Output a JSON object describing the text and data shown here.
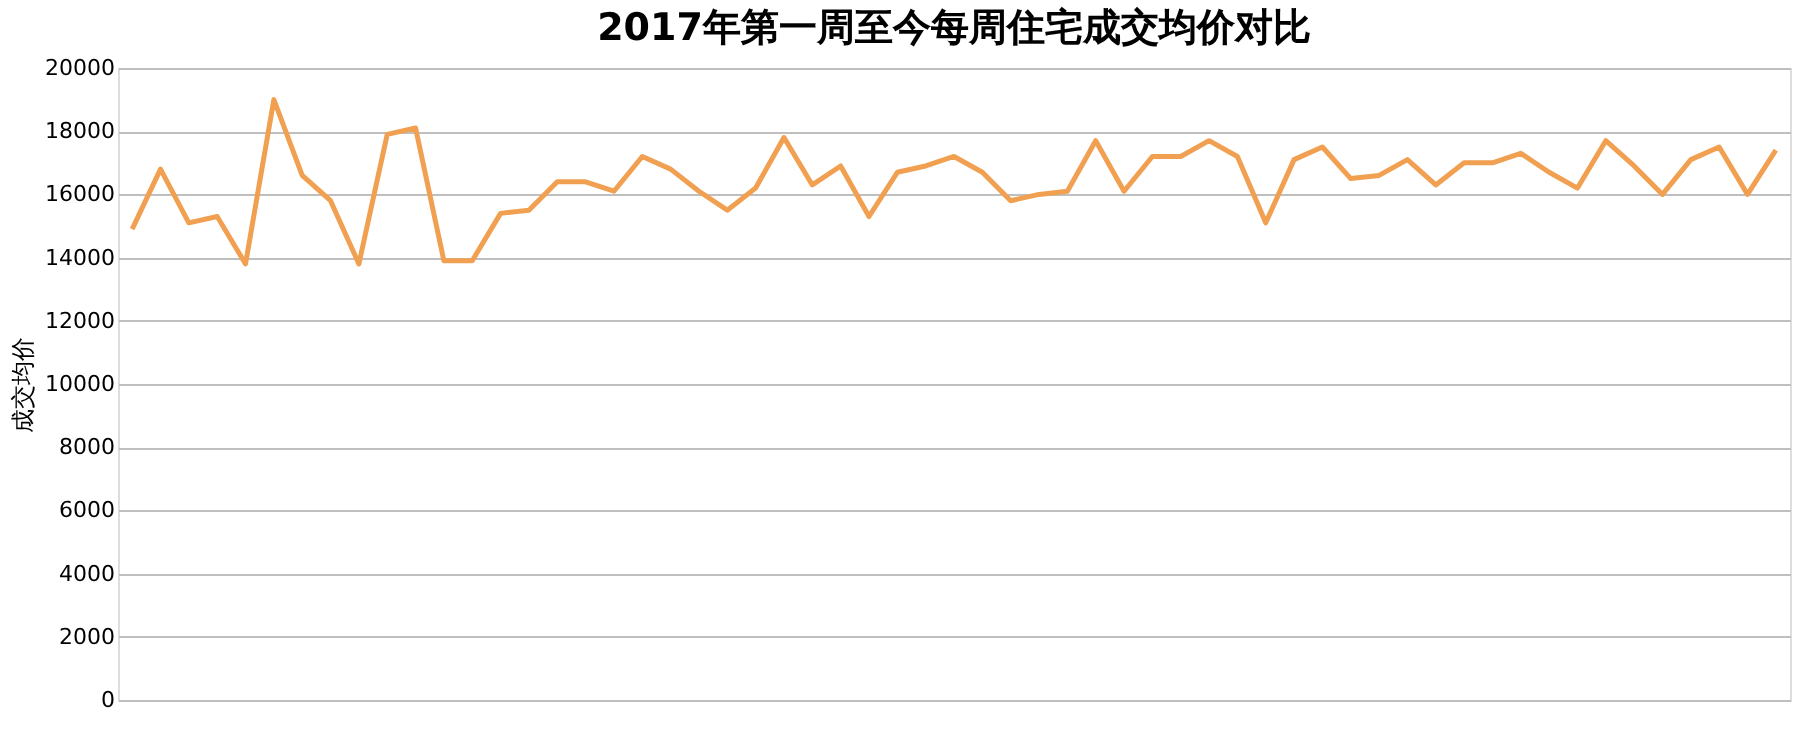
{
  "chart_data": {
    "type": "line",
    "title": "2017年第一周至今每周住宅成交均价对比",
    "ylabel": "成交均价",
    "categories": [
      null,
      null,
      null,
      null,
      null,
      null,
      null,
      null,
      null,
      null,
      null,
      null,
      null,
      null,
      null,
      null,
      null,
      null,
      null,
      null,
      null,
      null,
      null,
      null,
      null,
      null,
      null,
      null,
      null,
      null,
      null,
      null,
      null,
      null,
      null,
      null,
      null,
      null,
      null,
      null,
      null,
      null,
      null,
      null,
      null,
      null,
      null,
      null,
      null,
      null,
      null,
      null,
      null,
      null,
      null,
      null,
      null,
      null,
      null
    ],
    "series": [
      {
        "color": "#f0a050",
        "values": [
          14900,
          16800,
          15100,
          15300,
          13800,
          19000,
          16600,
          15800,
          13800,
          17900,
          18100,
          13900,
          13900,
          15400,
          15500,
          16400,
          16400,
          16100,
          17200,
          16800,
          16100,
          15500,
          16200,
          17800,
          16300,
          16900,
          15300,
          16700,
          16900,
          17200,
          16700,
          15800,
          16000,
          16100,
          17700,
          16100,
          17200,
          17200,
          17700,
          17200,
          15100,
          17100,
          17500,
          16500,
          16600,
          17100,
          16300,
          17000,
          17000,
          17300,
          16700,
          16200,
          17700,
          16900,
          16000,
          17100,
          17500,
          16000,
          17400
        ]
      }
    ],
    "ylim": [
      0,
      20000
    ],
    "yticks": [
      0,
      2000,
      4000,
      6000,
      8000,
      10000,
      12000,
      14000,
      16000,
      18000,
      20000
    ],
    "grid": "y",
    "marker": "none",
    "line_style": "solid"
  }
}
